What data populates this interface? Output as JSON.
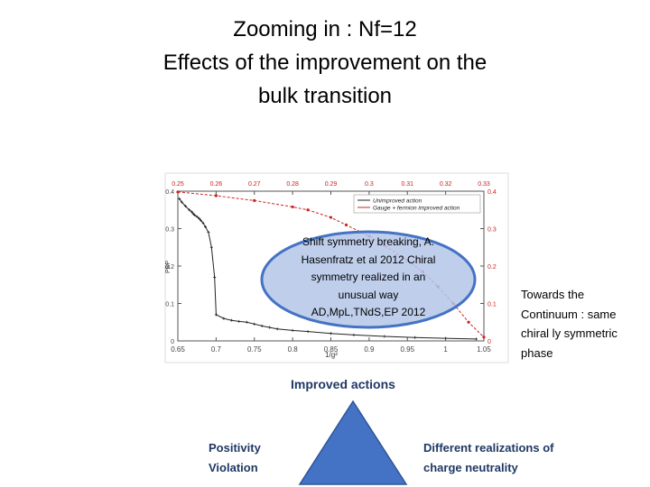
{
  "title": {
    "line1": "Zooming in : Nf=12",
    "line2": "Effects of the improvement on the",
    "line3": "bulk transition"
  },
  "chart_data": {
    "type": "line",
    "xlabel": "1/g²",
    "ylabel": "PBP",
    "xlim": [
      0.65,
      1.05
    ],
    "ylim": [
      0,
      0.4
    ],
    "x_ticks": [
      "0.65",
      "0.7",
      "0.75",
      "0.8",
      "0.85",
      "0.9",
      "0.95",
      "1",
      "1.05"
    ],
    "y_ticks": [
      "0",
      "0.1",
      "0.2",
      "0.3",
      "0.4"
    ],
    "top_ticks": [
      "0.25",
      "0.26",
      "0.27",
      "0.28",
      "0.29",
      "0.3",
      "0.31",
      "0.32",
      "0.33"
    ],
    "right_ticks": [
      "0",
      "0.1",
      "0.2",
      "0.3",
      "0.4"
    ],
    "legend_position": "top-right",
    "colors": {
      "unimproved": "#222222",
      "improved": "#cc2222",
      "ticks_secondary": "#cc2222"
    },
    "series": [
      {
        "name": "Unimproved action",
        "x": [
          0.652,
          0.655,
          0.66,
          0.665,
          0.668,
          0.67,
          0.672,
          0.675,
          0.678,
          0.68,
          0.683,
          0.686,
          0.69,
          0.694,
          0.698,
          0.7,
          0.71,
          0.72,
          0.73,
          0.74,
          0.75,
          0.76,
          0.77,
          0.78,
          0.8,
          0.82,
          0.85,
          0.88,
          0.92,
          0.96,
          1.0,
          1.04
        ],
        "values": [
          0.38,
          0.371,
          0.36,
          0.35,
          0.345,
          0.34,
          0.336,
          0.332,
          0.327,
          0.322,
          0.315,
          0.305,
          0.29,
          0.25,
          0.17,
          0.07,
          0.06,
          0.055,
          0.052,
          0.05,
          0.045,
          0.04,
          0.036,
          0.032,
          0.028,
          0.025,
          0.02,
          0.016,
          0.012,
          0.009,
          0.007,
          0.005
        ]
      },
      {
        "name": "Gauge + fermion improved action",
        "x": [
          0.65,
          0.7,
          0.75,
          0.8,
          0.82,
          0.85,
          0.87,
          0.9,
          0.92,
          0.95,
          0.97,
          0.99,
          1.01,
          1.03,
          1.05
        ],
        "values": [
          0.398,
          0.388,
          0.375,
          0.358,
          0.35,
          0.33,
          0.31,
          0.28,
          0.255,
          0.215,
          0.185,
          0.145,
          0.1,
          0.05,
          0.01
        ]
      }
    ]
  },
  "ellipse_text": [
    "Shift symmetry breaking, A.",
    "Hasenfratz et al  2012 Chiral",
    "symmetry realized in an",
    "unusual way",
    "AD,MpL,TNdS,EP 2012"
  ],
  "side_note": [
    "Towards the",
    "Continuum : same",
    "chiral ly symmetric",
    "phase"
  ],
  "improved_actions": "Improved actions",
  "positivity": [
    "Positivity",
    "Violation"
  ],
  "different": [
    "Different realizations of",
    "charge neutrality"
  ],
  "colors": {
    "ellipse_fill": "#b4c6e7",
    "ellipse_stroke": "#4472c4",
    "triangle": "#4472c4",
    "label_text": "#1f3864"
  }
}
